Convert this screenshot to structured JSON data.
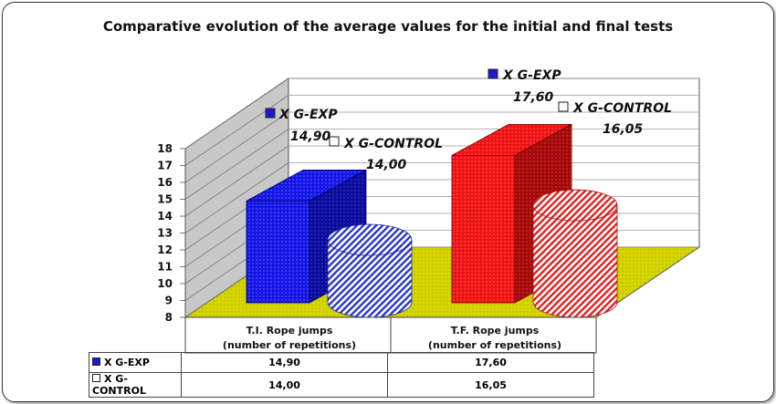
{
  "chart_data": {
    "type": "bar",
    "title": "Comparative evolution of the average values for the initial and final tests",
    "categories": [
      "T.I. Rope jumps\n(number of repetitions)",
      "T.F. Rope jumps\n(number of repetitions)"
    ],
    "series": [
      {
        "name": "X G-EXP",
        "values": [
          14.9,
          17.6
        ],
        "labels": [
          "14,90",
          "17,60"
        ],
        "color": "#1010e0",
        "shape": "box"
      },
      {
        "name": "X G-CONTROL",
        "values": [
          14.0,
          16.05
        ],
        "labels": [
          "14,00",
          "16,05"
        ],
        "color": "#e01010",
        "shape": "cylinder"
      }
    ],
    "ylim": [
      8,
      18
    ],
    "yticks": [
      8,
      9,
      10,
      11,
      12,
      13,
      14,
      15,
      16,
      17,
      18
    ],
    "grid": true,
    "floor_color": "#d4d400",
    "legend_keys": [
      {
        "name": "X G-EXP",
        "color": "#1a1ad0"
      },
      {
        "name": "X G-CONTROL",
        "color": "#ffffff"
      }
    ],
    "table": [
      {
        "series": "X G-EXP",
        "values": [
          "14,90",
          "17,60"
        ]
      },
      {
        "series": "X G-CONTROL",
        "values": [
          "14,00",
          "16,05"
        ]
      }
    ]
  }
}
